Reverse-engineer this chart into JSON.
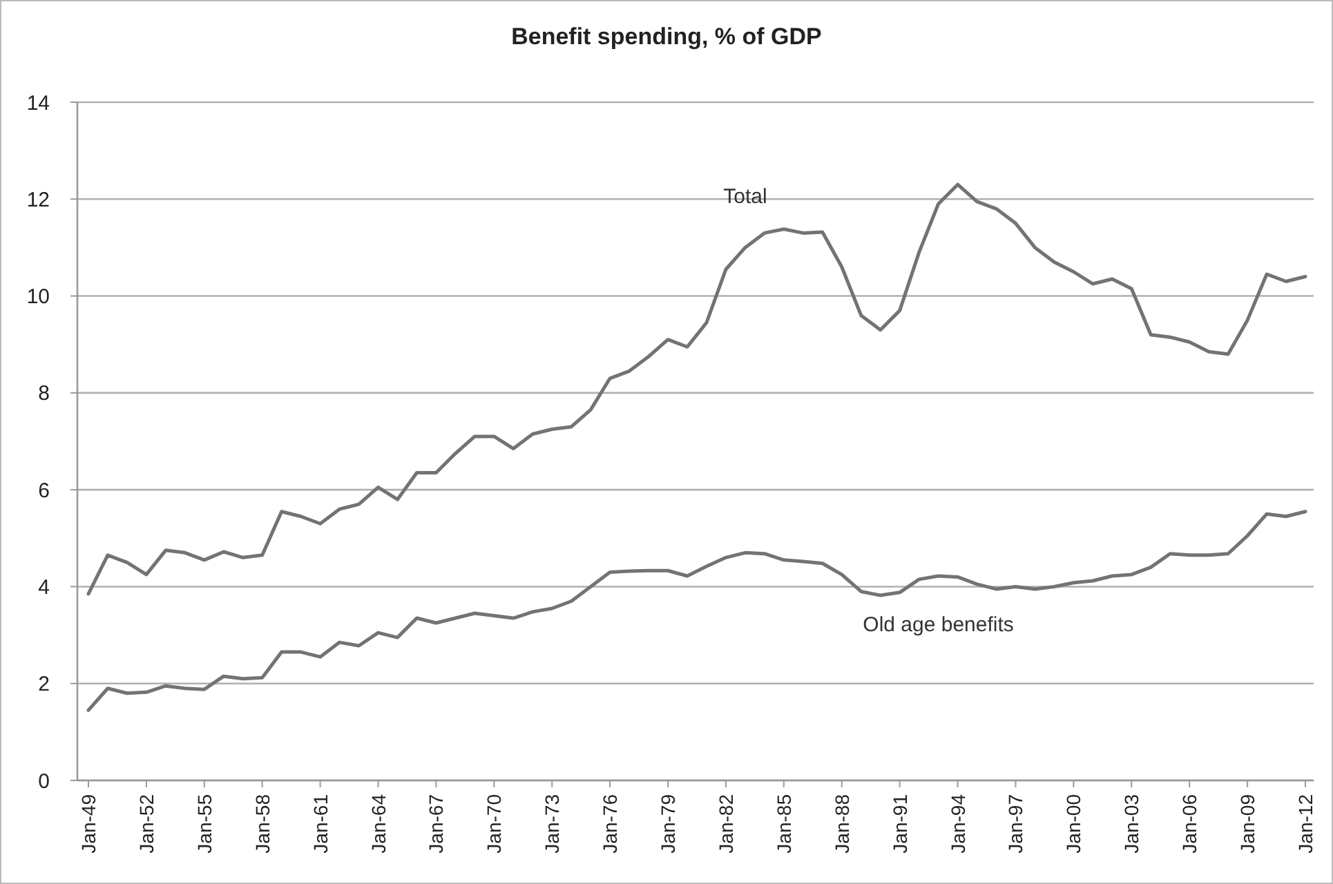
{
  "chart_data": {
    "type": "line",
    "title": "Benefit spending, % of GDP",
    "categories": [
      "Jan-49",
      null,
      null,
      "Jan-52",
      null,
      null,
      "Jan-55",
      null,
      null,
      "Jan-58",
      null,
      null,
      "Jan-61",
      null,
      null,
      "Jan-64",
      null,
      null,
      "Jan-67",
      null,
      null,
      "Jan-70",
      null,
      null,
      "Jan-73",
      null,
      null,
      "Jan-76",
      null,
      null,
      "Jan-79",
      null,
      null,
      "Jan-82",
      null,
      null,
      "Jan-85",
      null,
      null,
      "Jan-88",
      null,
      null,
      "Jan-91",
      null,
      null,
      "Jan-94",
      null,
      null,
      "Jan-97",
      null,
      null,
      "Jan-00",
      null,
      null,
      "Jan-03",
      null,
      null,
      "Jan-06",
      null,
      null,
      "Jan-09",
      null,
      null,
      "Jan-12"
    ],
    "series": [
      {
        "name": "Total",
        "color": "#737373",
        "values": [
          3.85,
          4.65,
          4.5,
          4.25,
          4.75,
          4.7,
          4.55,
          4.72,
          4.6,
          4.65,
          5.55,
          5.45,
          5.3,
          5.6,
          5.7,
          6.05,
          5.8,
          6.35,
          6.35,
          6.75,
          7.1,
          7.1,
          6.85,
          7.15,
          7.25,
          7.3,
          7.65,
          8.3,
          8.45,
          8.75,
          9.1,
          8.95,
          9.45,
          10.55,
          11.0,
          11.3,
          11.38,
          11.3,
          11.32,
          10.6,
          9.6,
          9.3,
          9.7,
          10.9,
          11.9,
          12.3,
          11.95,
          11.8,
          11.5,
          11.0,
          10.7,
          10.5,
          10.25,
          10.35,
          10.15,
          9.2,
          9.15,
          9.05,
          8.85,
          8.8,
          9.5,
          10.45,
          10.3,
          10.4
        ]
      },
      {
        "name": "Old age benefits",
        "color": "#737373",
        "values": [
          1.45,
          1.9,
          1.8,
          1.82,
          1.95,
          1.9,
          1.88,
          2.15,
          2.1,
          2.12,
          2.65,
          2.65,
          2.55,
          2.85,
          2.78,
          3.05,
          2.95,
          3.35,
          3.25,
          3.35,
          3.45,
          3.4,
          3.35,
          3.48,
          3.55,
          3.7,
          4.0,
          4.3,
          4.32,
          4.33,
          4.33,
          4.22,
          4.42,
          4.6,
          4.7,
          4.68,
          4.55,
          4.52,
          4.48,
          4.25,
          3.9,
          3.82,
          3.88,
          4.15,
          4.22,
          4.2,
          4.05,
          3.95,
          4.0,
          3.95,
          4.0,
          4.08,
          4.12,
          4.22,
          4.25,
          4.4,
          4.68,
          4.65,
          4.65,
          4.68,
          5.05,
          5.5,
          5.45,
          5.55
        ]
      }
    ],
    "ylim": [
      0,
      14
    ],
    "yticks": [
      0,
      2,
      4,
      6,
      8,
      10,
      12,
      14
    ],
    "grid": "y",
    "legend": false,
    "marker": "none",
    "line_style": "solid"
  }
}
